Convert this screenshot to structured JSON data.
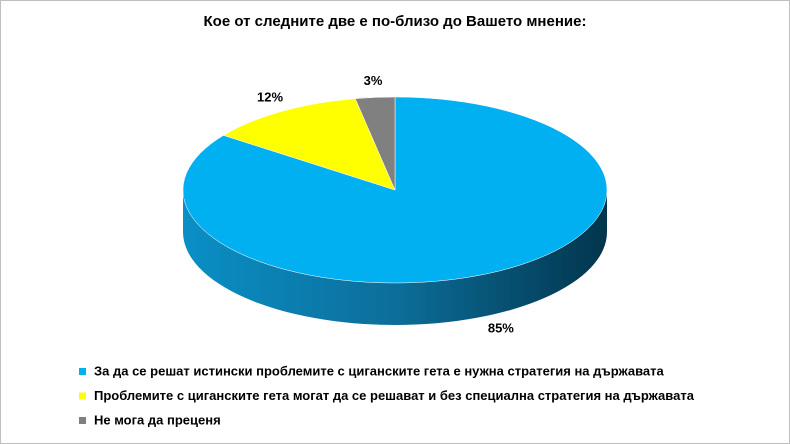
{
  "chart_data": {
    "type": "pie",
    "title": "Кое от следните две е по-близо до Вашето мнение:",
    "categories": [
      "За да се решат истински проблемите с циганските гета е нужна стратегия на държавата",
      "Проблемите с циганските гета могат да се решават и без специална стратегия на държавата",
      "Не мога да преценя"
    ],
    "values": [
      85,
      12,
      3
    ],
    "value_labels": [
      "85%",
      "12%",
      "3%"
    ],
    "colors": [
      "#00b0f0",
      "#ffff00",
      "#808080"
    ],
    "legend": "bottom"
  }
}
